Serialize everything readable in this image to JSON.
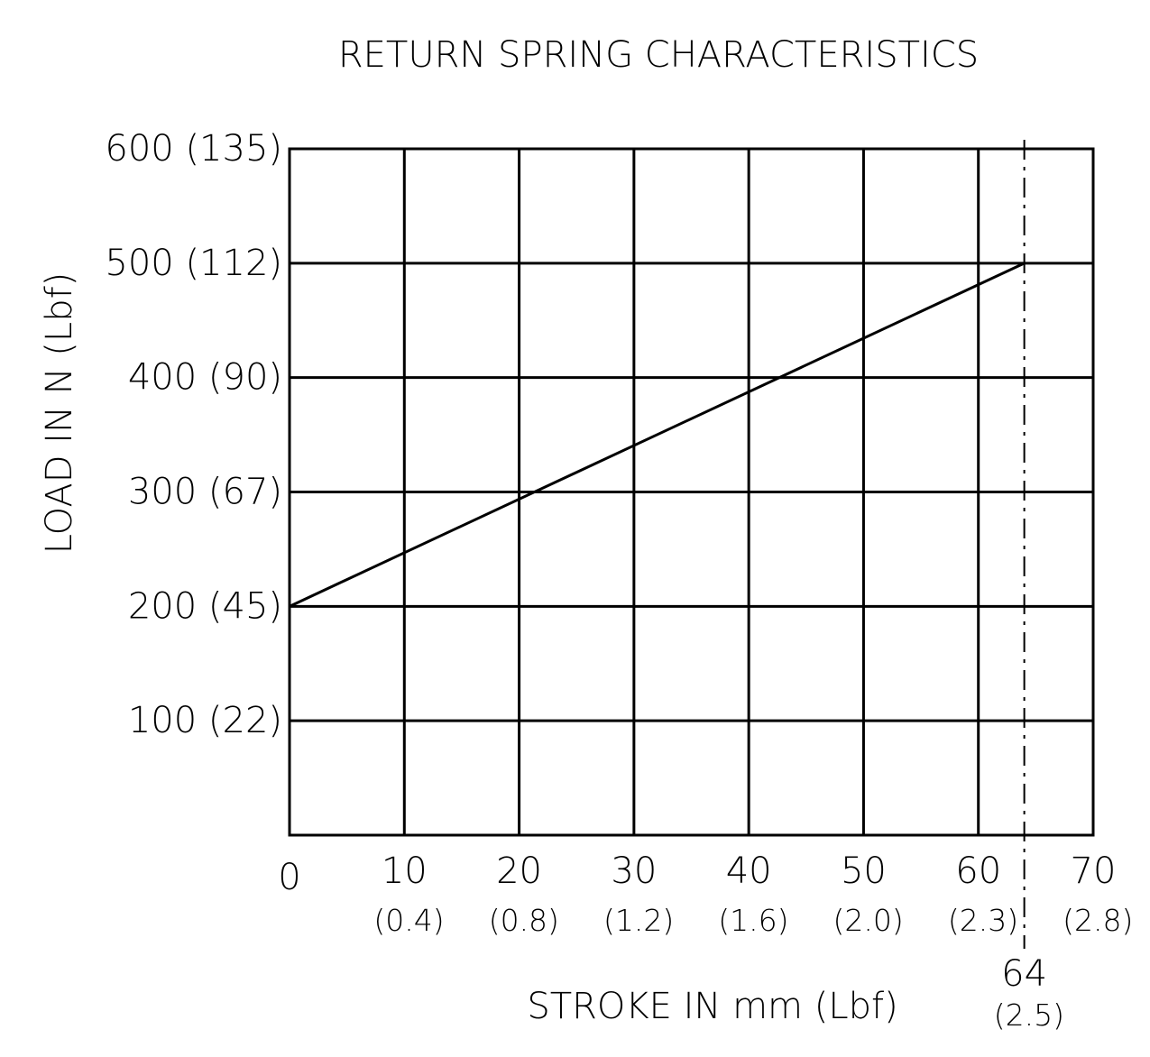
{
  "chart_data": {
    "type": "line",
    "title": "RETURN SPRING CHARACTERISTICS",
    "x_label": "STROKE IN mm (Lbf)",
    "y_label": "LOAD IN N (Lbf)",
    "x": [
      0,
      64
    ],
    "values": [
      200,
      500
    ],
    "color": "#000000",
    "xlim": [
      0,
      70
    ],
    "ylim": [
      0,
      600
    ],
    "xticks": [
      0,
      {
        "value": 10,
        "label": "10 (0.4)"
      },
      {
        "value": 20,
        "label": "20 (0.8)"
      },
      {
        "value": 30,
        "label": "30 (1.2)"
      },
      {
        "value": 40,
        "label": "40 (1.6)"
      },
      {
        "value": 50,
        "label": "50 (2.0)"
      },
      {
        "value": 60,
        "label": "60 (2.3)"
      },
      {
        "value": 70,
        "label": "70 (2.8)"
      }
    ],
    "yticks": [
      {
        "value": 100,
        "label": "100 (22)"
      },
      {
        "value": 200,
        "label": "200 (45)"
      },
      {
        "value": 300,
        "label": "300 (67)"
      },
      {
        "value": 400,
        "label": "400 (90)"
      },
      {
        "value": 500,
        "label": "500 (112)"
      },
      {
        "value": 600,
        "label": "600 (135)"
      }
    ],
    "vline": {
      "value": 64,
      "label": "64 (2.5)"
    },
    "grid": true
  }
}
